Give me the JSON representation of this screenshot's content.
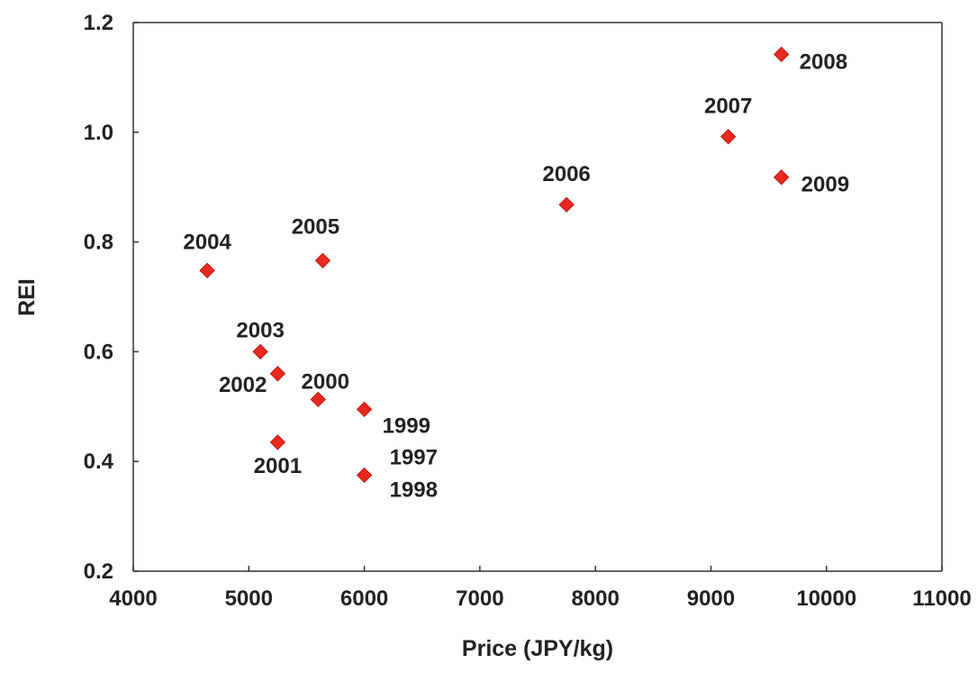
{
  "chart_data": {
    "type": "scatter",
    "title": "",
    "xlabel": "Price (JPY/kg)",
    "ylabel": "REI",
    "xlim": [
      4000,
      11000
    ],
    "ylim": [
      0.2,
      1.2
    ],
    "xticks": [
      "4000",
      "5000",
      "6000",
      "7000",
      "8000",
      "9000",
      "10000",
      "11000"
    ],
    "yticks": [
      "0.2",
      "0.4",
      "0.6",
      "0.8",
      "1.0",
      "1.2"
    ],
    "grid": false,
    "legend": "none",
    "marker": "diamond",
    "marker_color": "#e8291f",
    "points": [
      {
        "label": "1997",
        "x": 6000,
        "y": 0.375
      },
      {
        "label": "1998",
        "x": 6000,
        "y": 0.375
      },
      {
        "label": "1999",
        "x": 6000,
        "y": 0.495
      },
      {
        "label": "2000",
        "x": 5600,
        "y": 0.513
      },
      {
        "label": "2001",
        "x": 5250,
        "y": 0.435
      },
      {
        "label": "2002",
        "x": 5250,
        "y": 0.56
      },
      {
        "label": "2003",
        "x": 5100,
        "y": 0.6
      },
      {
        "label": "2004",
        "x": 4640,
        "y": 0.748
      },
      {
        "label": "2005",
        "x": 5640,
        "y": 0.766
      },
      {
        "label": "2006",
        "x": 7750,
        "y": 0.868
      },
      {
        "label": "2007",
        "x": 9150,
        "y": 0.992
      },
      {
        "label": "2008",
        "x": 9610,
        "y": 1.142
      },
      {
        "label": "2009",
        "x": 9610,
        "y": 0.918
      }
    ]
  }
}
